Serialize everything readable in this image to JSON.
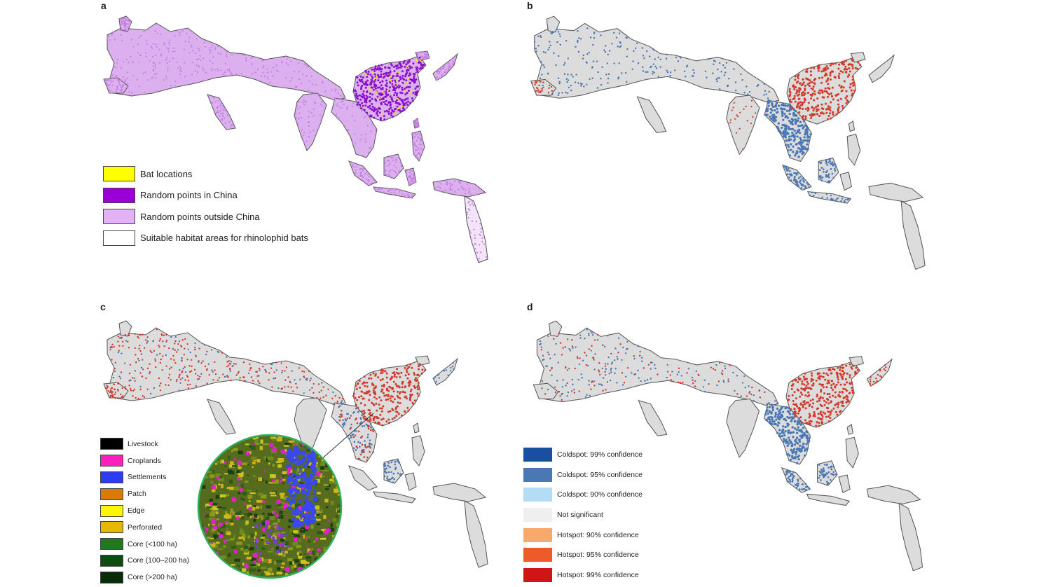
{
  "panels": [
    {
      "letter": "a"
    },
    {
      "letter": "b"
    },
    {
      "letter": "c"
    },
    {
      "letter": "d"
    }
  ],
  "legend_a": [
    {
      "label": "Bat locations",
      "color": "#ffff00"
    },
    {
      "label": "Random points in China",
      "color": "#9b00d9"
    },
    {
      "label": "Random points outside China",
      "color": "#e3b2f5"
    },
    {
      "label": "Suitable habitat areas for rhinolophid bats",
      "color": "#ffffff"
    }
  ],
  "legend_c": [
    {
      "label": "Livestock",
      "color": "#000000"
    },
    {
      "label": "Croplands",
      "color": "#ff1fbf"
    },
    {
      "label": "Settlements",
      "color": "#2d3cf0"
    },
    {
      "label": "Patch",
      "color": "#d97a0a"
    },
    {
      "label": "Edge",
      "color": "#fff500"
    },
    {
      "label": "Perforated",
      "color": "#e6b800"
    },
    {
      "label": "Core (<100 ha)",
      "color": "#1e7a1e"
    },
    {
      "label": "Core (100–200 ha)",
      "color": "#0f4d0f"
    },
    {
      "label": "Core (>200 ha)",
      "color": "#082b08"
    }
  ],
  "legend_d": [
    {
      "label": "Coldspot: 99% confidence",
      "color": "#1a4fa0"
    },
    {
      "label": "Coldspot: 95% confidence",
      "color": "#4a78b5"
    },
    {
      "label": "Coldspot: 90% confidence",
      "color": "#b3dcf5"
    },
    {
      "label": "Not significant",
      "color": "#efefef"
    },
    {
      "label": "Hotspot: 90% confidence",
      "color": "#f7a86b"
    },
    {
      "label": "Hotspot: 95% confidence",
      "color": "#ee5a28"
    },
    {
      "label": "Hotspot: 99% confidence",
      "color": "#d01515"
    }
  ],
  "map_colors": {
    "outline": "#555555",
    "purple_light": "#dcb0ef",
    "purple_dark": "#8a12c8",
    "grey_fill": "#dcdcdc",
    "blue": "#4a78b5",
    "red": "#d23a2a"
  }
}
